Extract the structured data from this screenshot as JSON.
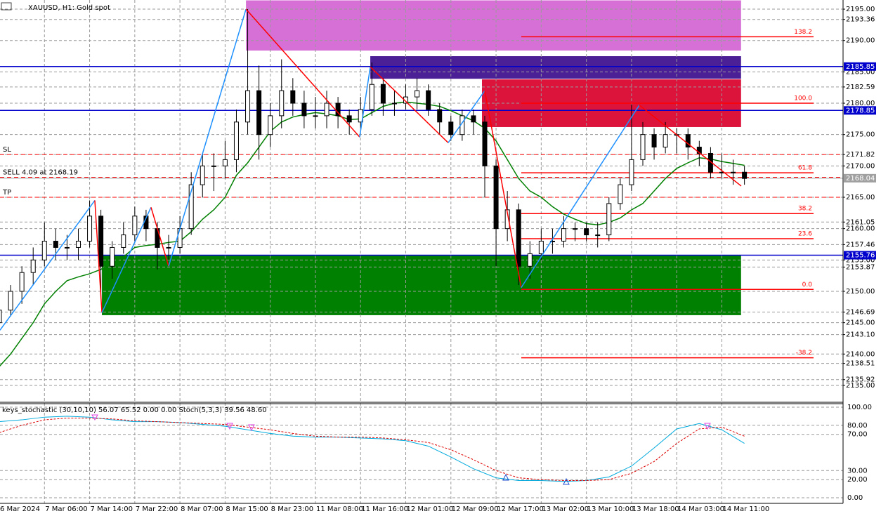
{
  "chart_data": {
    "type": "candlestick",
    "title": "XAUUSD, H1: Gold spot",
    "categories": [
      "6 Mar 2024",
      null,
      null,
      null,
      "7 Mar 06:00",
      null,
      null,
      null,
      "7 Mar 14:00",
      null,
      null,
      null,
      "7 Mar 22:00",
      null,
      null,
      null,
      "8 Mar 07:00",
      null,
      null,
      null,
      "8 Mar 15:00",
      null,
      null,
      null,
      "8 Mar 23:00",
      null,
      null,
      null,
      "11 Mar 08:00",
      null,
      null,
      null,
      "11 Mar 16:00",
      null,
      null,
      null,
      "12 Mar 01:00",
      null,
      null,
      null,
      "12 Mar 09:00",
      null,
      null,
      null,
      "12 Mar 17:00",
      null,
      null,
      null,
      "13 Mar 02:00",
      null,
      null,
      null,
      "13 Mar 10:00",
      null,
      null,
      null,
      "13 Mar 18:00",
      null,
      null,
      null,
      "14 Mar 03:00",
      null,
      null,
      null,
      "14 Mar 11:00",
      null,
      null
    ],
    "ohlc": [
      [
        2145,
        2148,
        2143,
        2147
      ],
      [
        2147,
        2151,
        2146,
        2150
      ],
      [
        2150,
        2154,
        2148,
        2153
      ],
      [
        2153,
        2157,
        2151,
        2155
      ],
      [
        2155,
        2161,
        2154,
        2158
      ],
      [
        2158,
        2160,
        2155,
        2157
      ],
      [
        2157,
        2159,
        2155,
        2157
      ],
      [
        2157,
        2160,
        2155,
        2158
      ],
      [
        2158,
        2164.5,
        2157,
        2162
      ],
      [
        2162,
        2163,
        2149,
        2154
      ],
      [
        2154,
        2158,
        2152,
        2157
      ],
      [
        2157,
        2161,
        2156,
        2159
      ],
      [
        2159,
        2163.5,
        2158,
        2162
      ],
      [
        2162,
        2163,
        2158,
        2160
      ],
      [
        2160,
        2161,
        2153.5,
        2157
      ],
      [
        2157,
        2159,
        2155,
        2157
      ],
      [
        2157,
        2162,
        2156,
        2160
      ],
      [
        2160,
        2169,
        2159,
        2167
      ],
      [
        2167,
        2172,
        2165,
        2170
      ],
      [
        2170,
        2172,
        2166,
        2170
      ],
      [
        2170,
        2174,
        2168,
        2171
      ],
      [
        2171,
        2179,
        2169,
        2177
      ],
      [
        2177,
        2195,
        2175,
        2182
      ],
      [
        2182,
        2186,
        2171,
        2175
      ],
      [
        2175,
        2180,
        2173,
        2178
      ],
      [
        2178,
        2187,
        2176,
        2182
      ],
      [
        2182,
        2184,
        2178,
        2180
      ],
      [
        2180,
        2182,
        2176,
        2178
      ],
      [
        2178,
        2181,
        2176,
        2178
      ],
      [
        2178,
        2182,
        2176,
        2180
      ],
      [
        2180,
        2181,
        2176,
        2178
      ],
      [
        2178,
        2179,
        2175,
        2177
      ],
      [
        2177,
        2181,
        2176,
        2179
      ],
      [
        2179,
        2186.5,
        2178,
        2183
      ],
      [
        2183,
        2184,
        2178,
        2180
      ],
      [
        2180,
        2182,
        2178,
        2180
      ],
      [
        2180,
        2183,
        2179,
        2181
      ],
      [
        2181,
        2184,
        2179,
        2182
      ],
      [
        2182,
        2183,
        2178,
        2179
      ],
      [
        2179,
        2180,
        2175,
        2177
      ],
      [
        2177,
        2178,
        2174,
        2175
      ],
      [
        2175,
        2179,
        2174,
        2178
      ],
      [
        2178,
        2179,
        2175,
        2177
      ],
      [
        2177,
        2178,
        2165,
        2170
      ],
      [
        2170,
        2171,
        2154,
        2160
      ],
      [
        2160,
        2166,
        2158,
        2163
      ],
      [
        2163,
        2164,
        2151,
        2154
      ],
      [
        2154,
        2158,
        2152,
        2156
      ],
      [
        2156,
        2160,
        2155,
        2158
      ],
      [
        2158,
        2160,
        2156,
        2158
      ],
      [
        2158,
        2162,
        2157,
        2160
      ],
      [
        2160,
        2161,
        2158,
        2160
      ],
      [
        2160,
        2161,
        2158,
        2159
      ],
      [
        2159,
        2161,
        2157,
        2159
      ],
      [
        2159,
        2165,
        2158,
        2164
      ],
      [
        2164,
        2168,
        2163,
        2167
      ],
      [
        2167,
        2179.8,
        2166,
        2171
      ],
      [
        2171,
        2177,
        2170,
        2175
      ],
      [
        2175,
        2176,
        2171,
        2173
      ],
      [
        2173,
        2177,
        2172,
        2175
      ],
      [
        2175,
        2176,
        2172,
        2175
      ],
      [
        2175,
        2176,
        2171,
        2173
      ],
      [
        2173,
        2174,
        2170,
        2172
      ],
      [
        2172,
        2173,
        2168,
        2169
      ],
      [
        2169,
        2172,
        2168,
        2169
      ],
      [
        2169,
        2171,
        2167,
        2169
      ],
      [
        2169,
        2170,
        2167,
        2168
      ]
    ],
    "ylim": [
      2132.42,
      2196.46
    ],
    "yticks": [
      {
        "value": 2195,
        "label": "2195.00"
      },
      {
        "value": 2193.36,
        "label": "2193.36"
      },
      {
        "value": 2190,
        "label": "2190.00"
      },
      {
        "value": 2185,
        "label": "2185.00"
      },
      {
        "value": 2182.59,
        "label": "2182.59"
      },
      {
        "value": 2180,
        "label": "2180.00"
      },
      {
        "value": 2175,
        "label": "2175.00"
      },
      {
        "value": 2171.82,
        "label": "2171.82"
      },
      {
        "value": 2170,
        "label": "2170.00"
      },
      {
        "value": 2165,
        "label": "2165.00"
      },
      {
        "value": 2161.05,
        "label": "2161.05"
      },
      {
        "value": 2160,
        "label": "2160.00"
      },
      {
        "value": 2157.46,
        "label": "2157.46"
      },
      {
        "value": 2155,
        "label": "2155.00"
      },
      {
        "value": 2153.87,
        "label": "2153.87"
      },
      {
        "value": 2150,
        "label": "2150.00"
      },
      {
        "value": 2146.69,
        "label": "2146.69"
      },
      {
        "value": 2145,
        "label": "2145.00"
      },
      {
        "value": 2143.1,
        "label": "2143.10"
      },
      {
        "value": 2140,
        "label": "2140.00"
      },
      {
        "value": 2138.51,
        "label": "2138.51"
      },
      {
        "value": 2135.92,
        "label": "2135.92"
      },
      {
        "value": 2135,
        "label": "2135.00"
      }
    ],
    "grid": true,
    "zones": [
      {
        "x": [
          21.85,
          65.7
        ],
        "price": [
          2196.4,
          2188.4
        ],
        "color": "#d670d6"
      },
      {
        "x": [
          32.86,
          65.7
        ],
        "price": [
          2187.5,
          2183.9
        ],
        "color": "#4b1f96"
      },
      {
        "x": [
          42.75,
          65.7
        ],
        "price": [
          2183.8,
          2176.2
        ],
        "color": "#dc143c"
      },
      {
        "x": [
          9.09,
          65.7
        ],
        "price": [
          2155.7,
          2146.2
        ],
        "color": "#008000"
      }
    ],
    "ma": {
      "color": "#008000",
      "values": [
        2138,
        2140,
        2142.5,
        2145,
        2148,
        2150,
        2151.7,
        2152.3,
        2152.8,
        2153.5,
        2154.5,
        2155.5,
        2157,
        2157.3,
        2157.5,
        2157.8,
        2158,
        2159.5,
        2161.5,
        2163,
        2165,
        2168.5,
        2170.5,
        2173,
        2175.5,
        2177,
        2177.8,
        2178.2,
        2178.5,
        2178.3,
        2178,
        2177.4,
        2177.5,
        2178.5,
        2179.5,
        2180,
        2180.2,
        2180,
        2179.8,
        2179.5,
        2178.8,
        2178,
        2177.2,
        2176,
        2174,
        2171,
        2168,
        2166,
        2165,
        2163.5,
        2162.3,
        2161.5,
        2160.8,
        2160.6,
        2161,
        2161.7,
        2163,
        2164,
        2166,
        2168,
        2169.6,
        2170.5,
        2171.3,
        2171.1,
        2170.7,
        2170.4,
        2170.1
      ]
    },
    "zigzag": {
      "up_color": "#1e90ff",
      "down_color": "#ff0000",
      "x": [
        0.06,
        8.46,
        9.09,
        13.44,
        15,
        21.85,
        31.92,
        32.86,
        39.76,
        43,
        46.23,
        56.69,
        65.71
      ],
      "y": [
        2143.8,
        2164.5,
        2146.6,
        2163.4,
        2154,
        2195,
        2174.6,
        2185.8,
        2173.7,
        2182,
        2150.6,
        2179.7,
        2166.8
      ]
    },
    "levels": [
      {
        "value": 2185.85,
        "label": "2185.85",
        "color": "#0000cc"
      },
      {
        "value": 2178.85,
        "label": "2178.85",
        "color": "#0000cc"
      },
      {
        "value": 2155.76,
        "label": "2155.76",
        "color": "#0000cc"
      },
      {
        "value": 2168.04,
        "label": "2168.04",
        "color": "#a0a0a0"
      }
    ],
    "orders": [
      {
        "label": "SL",
        "price": 2171.82,
        "color": "#ff0000"
      },
      {
        "label": "SELL 4.09 at 2168.19",
        "price": 2168.19,
        "color": "#ff0000"
      },
      {
        "label": "TP",
        "price": 2165.0,
        "color": "#ff0000"
      }
    ],
    "fibonacci": {
      "color": "#ff0000",
      "levels": [
        {
          "label": "138.2",
          "price": 2190.6
        },
        {
          "label": "100.0",
          "price": 2180.0
        },
        {
          "label": "61.8",
          "price": 2168.9
        },
        {
          "label": "38.2",
          "price": 2162.4
        },
        {
          "label": "23.6",
          "price": 2158.4
        },
        {
          "label": "0.0",
          "price": 2150.3
        },
        {
          "label": "-38.2",
          "price": 2139.4
        }
      ]
    },
    "stochastic": {
      "title": "keys_stochastic (30,10,10) 56.07 65.52 0.00 0.00 Stoch(5,3,3) 39.56 48.60",
      "ylim": [
        -6.2,
        103.1
      ],
      "yticks": [
        {
          "value": 100,
          "label": "100.00"
        },
        {
          "value": 80,
          "label": "80.00"
        },
        {
          "value": 70,
          "label": "70.00"
        },
        {
          "value": 30,
          "label": "30.00"
        },
        {
          "value": 20,
          "label": "20.00"
        },
        {
          "value": 0,
          "label": "0.00"
        }
      ],
      "x": [
        0,
        2,
        4,
        6,
        8,
        10,
        12,
        14,
        16,
        18,
        20,
        22,
        24,
        26,
        28,
        30,
        32,
        34,
        36,
        38,
        40,
        42,
        44,
        46,
        48,
        50,
        52,
        54,
        56,
        58,
        60,
        62,
        64,
        66
      ],
      "series": [
        {
          "color": "#00aadd",
          "values": [
            84,
            86,
            89,
            90,
            89,
            86,
            84,
            84,
            83,
            81,
            79,
            75,
            71,
            68,
            67,
            67,
            66,
            65,
            63,
            57,
            45,
            32,
            22,
            19,
            19,
            18,
            19,
            23,
            35,
            55,
            76,
            82,
            75,
            60
          ]
        },
        {
          "color": "#dd0000",
          "values": [
            72,
            80,
            86,
            88,
            88,
            87,
            85,
            84,
            83,
            82,
            81,
            78,
            75,
            71,
            68,
            67,
            67,
            66,
            64,
            61,
            53,
            42,
            30,
            22,
            20,
            19,
            19,
            20,
            27,
            40,
            60,
            76,
            78,
            68
          ]
        }
      ]
    }
  }
}
